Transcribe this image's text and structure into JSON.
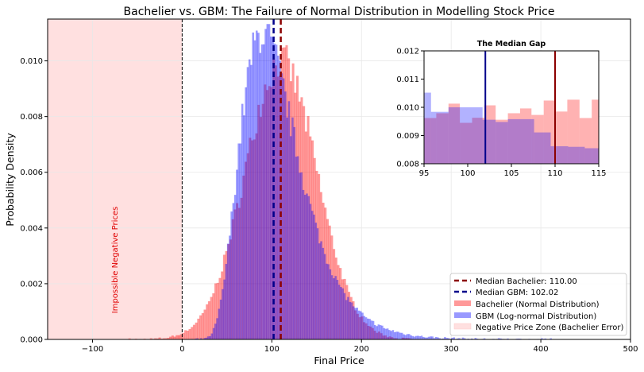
{
  "chart_data": {
    "type": "histogram",
    "title": "Bachelier vs. GBM: The Failure of Normal Distribution in Modelling Stock Price",
    "xlabel": "Final Price",
    "ylabel": "Probability Density",
    "xlim": [
      -150,
      500
    ],
    "ylim": [
      0,
      0.0115
    ],
    "xticks": [
      "−100",
      "0",
      "100",
      "200",
      "300",
      "400",
      "500"
    ],
    "xtick_values": [
      -100,
      0,
      100,
      200,
      300,
      400,
      500
    ],
    "yticks": [
      "0.000",
      "0.002",
      "0.004",
      "0.006",
      "0.008",
      "0.010"
    ],
    "ytick_values": [
      0,
      0.002,
      0.004,
      0.006,
      0.008,
      0.01
    ],
    "grid": true,
    "series": [
      {
        "name": "Bachelier (Normal Distribution)",
        "distribution": "normal",
        "mean": 110,
        "sd": 40,
        "peak_density": 0.0101,
        "range": [
          -60,
          260
        ],
        "color": "#ff9999"
      },
      {
        "name": "GBM (Log-normal Distribution)",
        "distribution": "lognormal",
        "median": 102.02,
        "sigma": 0.36,
        "peak_density": 0.011,
        "range": [
          10,
          420
        ],
        "color": "#9999ff"
      }
    ],
    "vlines": [
      {
        "name": "Median Bachelier: 110.00",
        "x": 110.0,
        "color": "#8b0000"
      },
      {
        "name": "Median GBM: 102.02",
        "x": 102.02,
        "color": "#00008b"
      }
    ],
    "shaded_region": {
      "name": "Negative Price Zone (Bachelier Error)",
      "x": [
        -150,
        0
      ],
      "color": "#ffe0e0"
    },
    "annotation": "Impossible Negative Prices",
    "legend_position": "lower-right",
    "inset": {
      "title": "The Median Gap",
      "xlim": [
        95,
        115
      ],
      "ylim": [
        0.008,
        0.012
      ],
      "xticks": [
        "95",
        "100",
        "105",
        "110",
        "115"
      ],
      "xtick_values": [
        95,
        100,
        105,
        110,
        115
      ],
      "yticks": [
        "0.008",
        "0.009",
        "0.010",
        "0.011",
        "0.012"
      ],
      "ytick_values": [
        0.008,
        0.009,
        0.01,
        0.011,
        0.012
      ],
      "bachelier_bins": [
        [
          95,
          96.4,
          0.00962
        ],
        [
          96.4,
          97.8,
          0.00979
        ],
        [
          97.8,
          99.1,
          0.01013
        ],
        [
          99.1,
          100.5,
          0.00945
        ],
        [
          100.5,
          101.9,
          0.00963
        ],
        [
          101.9,
          103.2,
          0.01007
        ],
        [
          103.2,
          104.6,
          0.00956
        ],
        [
          104.6,
          106,
          0.00979
        ],
        [
          106,
          107.3,
          0.00996
        ],
        [
          107.3,
          108.7,
          0.00973
        ],
        [
          108.7,
          110.1,
          0.01024
        ],
        [
          110.1,
          111.4,
          0.00985
        ],
        [
          111.4,
          112.8,
          0.01027
        ],
        [
          112.8,
          114.2,
          0.00962
        ],
        [
          114.2,
          115,
          0.01027
        ]
      ],
      "gbm_bins": [
        [
          95,
          95.8,
          0.01052
        ],
        [
          95.8,
          97.8,
          0.00984
        ],
        [
          97.8,
          101.7,
          0.01
        ],
        [
          101.7,
          103.2,
          0.00956
        ],
        [
          103.2,
          104.6,
          0.00948
        ],
        [
          104.6,
          107.6,
          0.00958
        ],
        [
          107.6,
          109.5,
          0.00911
        ],
        [
          109.5,
          111.5,
          0.00862
        ],
        [
          111.5,
          113.4,
          0.0086
        ],
        [
          113.4,
          115,
          0.00855
        ]
      ]
    }
  },
  "legend": [
    "Median Bachelier: 110.00",
    "Median GBM: 102.02",
    "Bachelier (Normal Distribution)",
    "GBM (Log-normal Distribution)",
    "Negative Price Zone (Bachelier Error)"
  ]
}
